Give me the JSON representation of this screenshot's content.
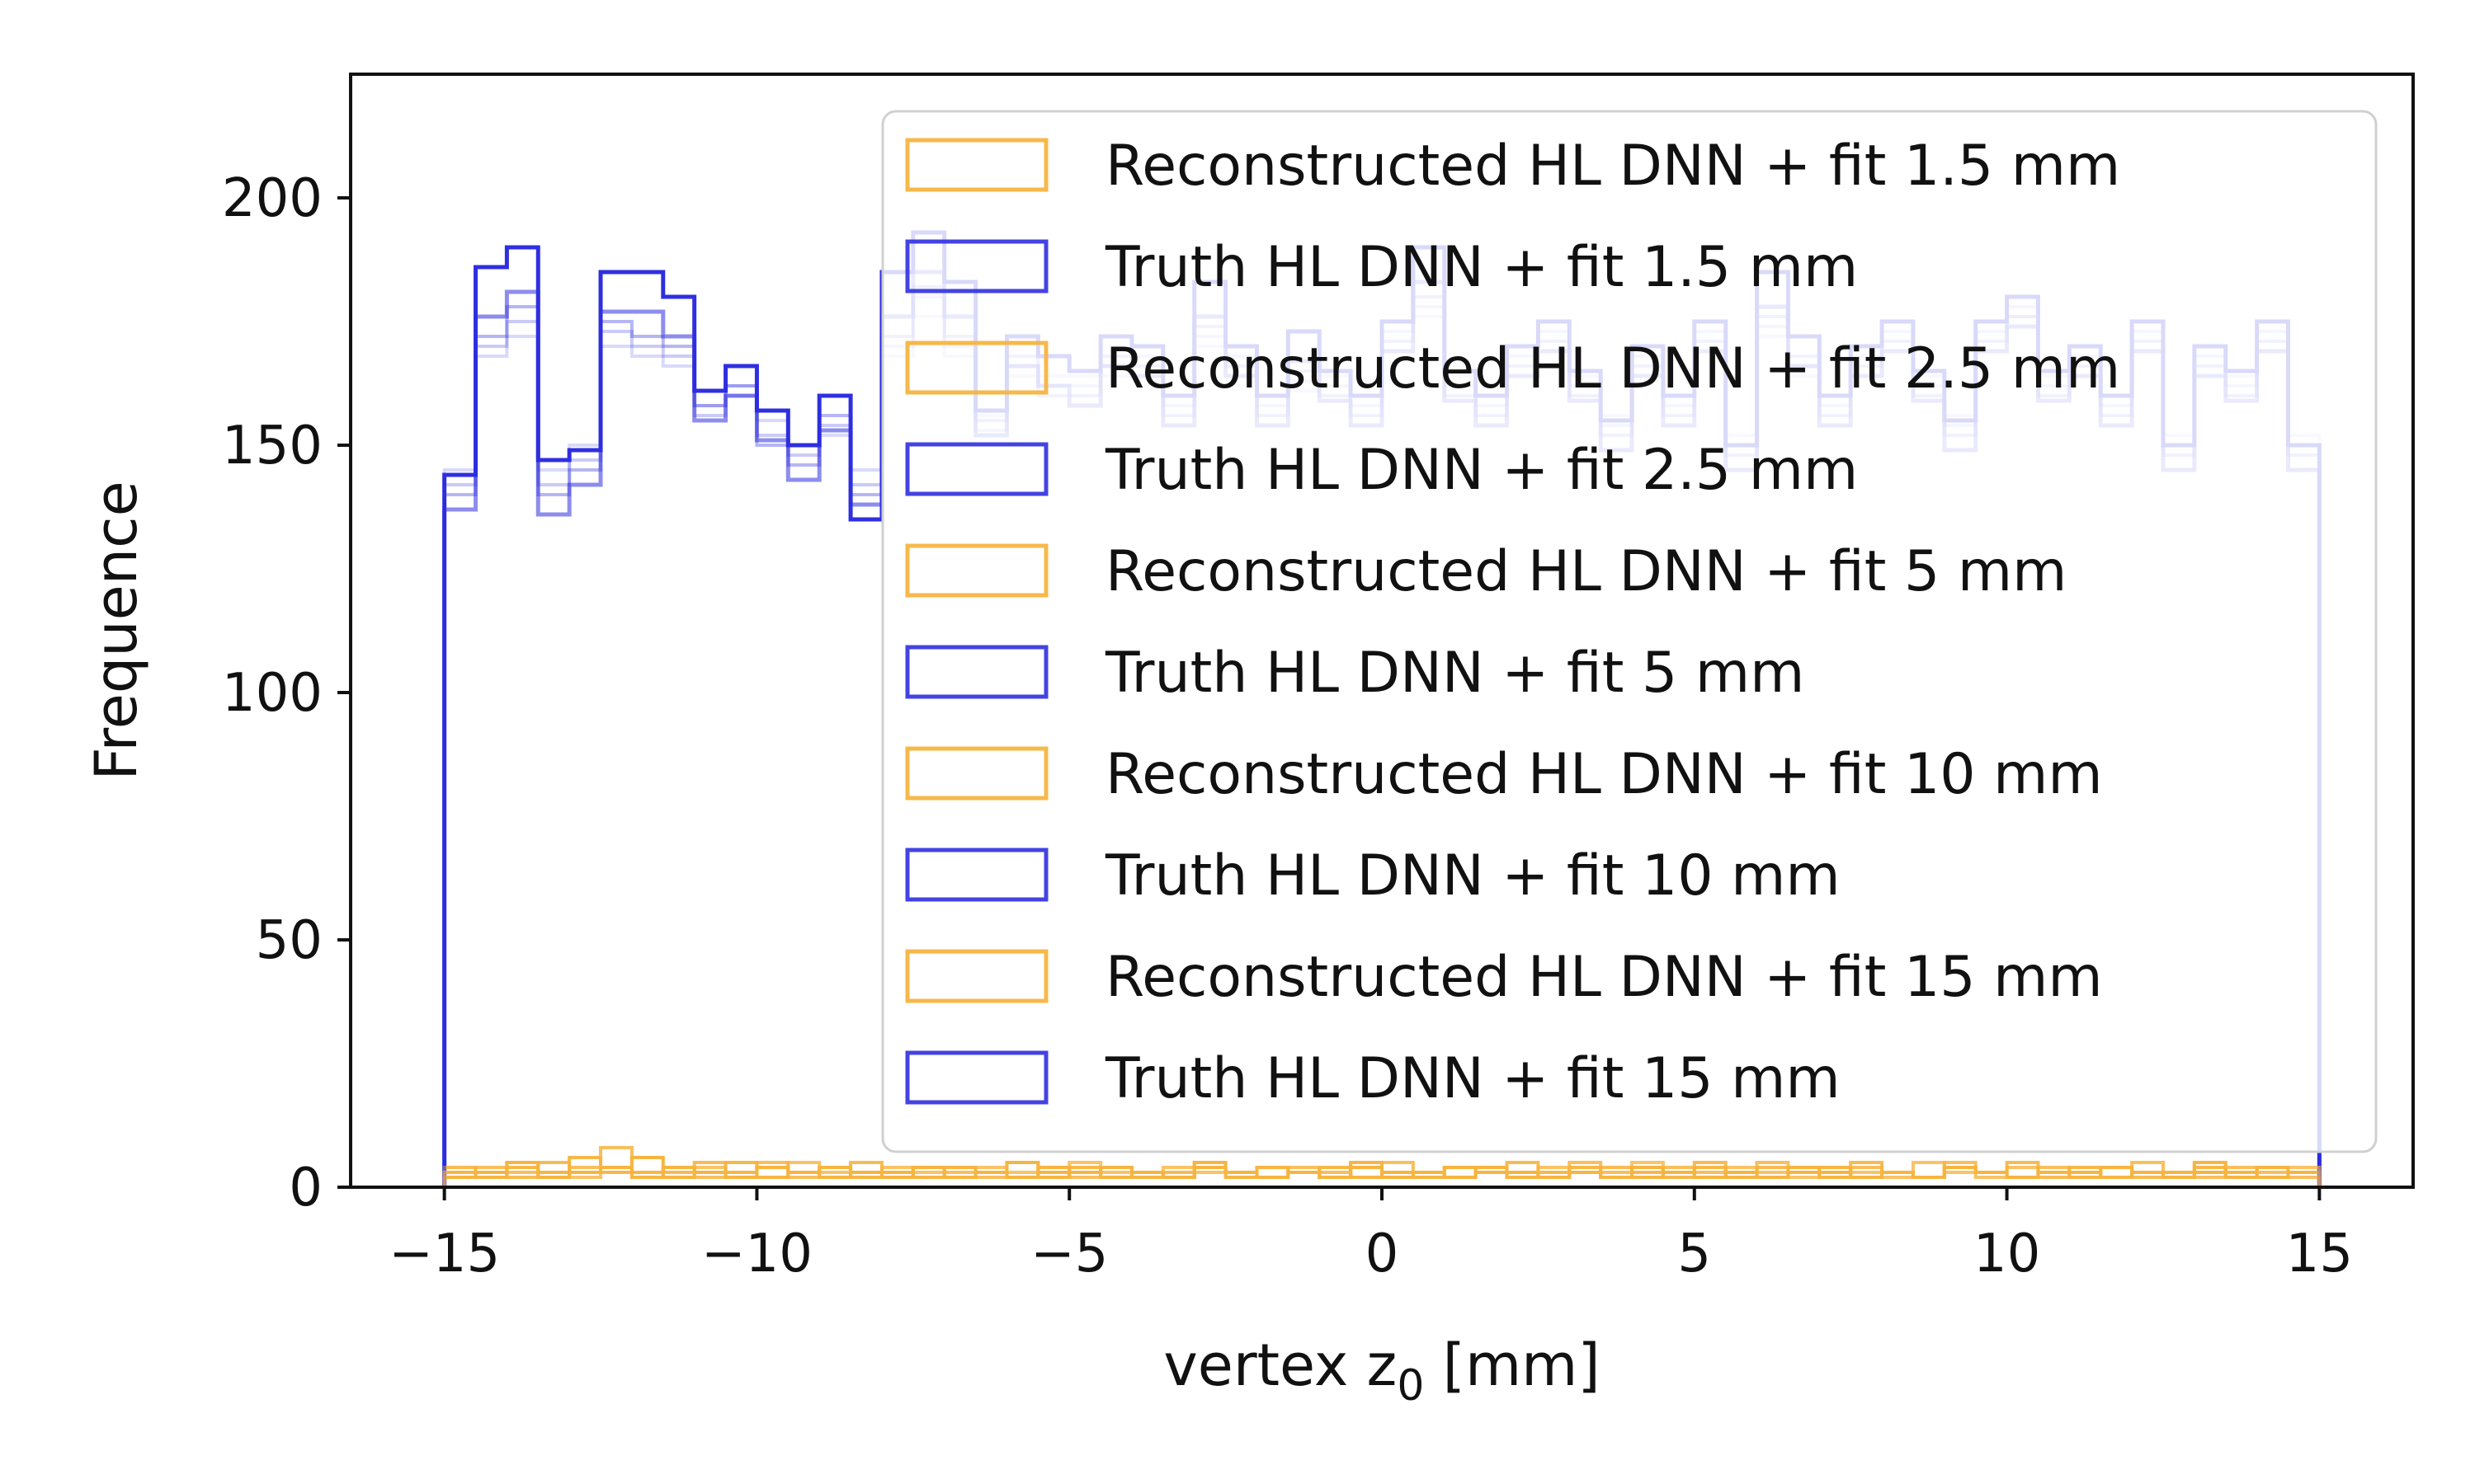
{
  "chart_data": {
    "type": "step",
    "title": "",
    "xlabel": "vertex z",
    "xlabel_subscript": "0",
    "xlabel_unit": " [mm]",
    "ylabel": "Frequence",
    "xlim": [
      -16.5,
      16.5
    ],
    "ylim": [
      0,
      225
    ],
    "xticks": [
      -15,
      -10,
      -5,
      0,
      5,
      10,
      15
    ],
    "xtick_labels": [
      "−15",
      "−10",
      "−5",
      "0",
      "5",
      "10",
      "15"
    ],
    "yticks": [
      0,
      50,
      100,
      150,
      200
    ],
    "ytick_labels": [
      "0",
      "50",
      "100",
      "150",
      "200"
    ],
    "grid": false,
    "legend_placement": "upper-right",
    "bin_edges_range": [
      -15,
      15
    ],
    "bin_width": 0.5,
    "series": [
      {
        "name": "Reconstructed HL DNN + fit 1.5 mm",
        "color": "#f7b440",
        "values": [
          2,
          3,
          5,
          2,
          3,
          4,
          6,
          2,
          3,
          2,
          4,
          3,
          2,
          3,
          2,
          4,
          2,
          3,
          2,
          4,
          3,
          2,
          3,
          2,
          4,
          3,
          2,
          3,
          2,
          4,
          2,
          3,
          2,
          4,
          3,
          2,
          3,
          2,
          4,
          3,
          2,
          3,
          2,
          4,
          3,
          2,
          3,
          2,
          4,
          3,
          2,
          3,
          2,
          4,
          3,
          2,
          3,
          2,
          4,
          3
        ]
      },
      {
        "name": "Truth HL DNN + fit 1.5 mm",
        "color": "#2f2fe0",
        "values": [
          144,
          186,
          190,
          147,
          149,
          185,
          185,
          180,
          161,
          166,
          157,
          150,
          160,
          135,
          185,
          193,
          183,
          157,
          172,
          168,
          165,
          172,
          170,
          160,
          183,
          170,
          160,
          173,
          165,
          160,
          175,
          190,
          165,
          160,
          170,
          175,
          165,
          155,
          170,
          160,
          175,
          150,
          185,
          172,
          160,
          170,
          175,
          165,
          155,
          175,
          180,
          165,
          170,
          160,
          175,
          150,
          170,
          165,
          175,
          150
        ]
      },
      {
        "name": "Reconstructed HL DNN + fit 2.5 mm",
        "color": "#f7b440",
        "values": [
          3,
          2,
          4,
          3,
          6,
          3,
          2,
          4,
          3,
          5,
          2,
          3,
          4,
          2,
          3,
          2,
          4,
          3,
          2,
          3,
          4,
          2,
          3,
          2,
          4,
          3,
          2,
          3,
          4,
          2,
          3,
          2,
          4,
          3,
          2,
          3,
          4,
          2,
          3,
          2,
          4,
          3,
          2,
          3,
          4,
          2,
          3,
          2,
          4,
          3,
          2,
          3,
          4,
          2,
          3,
          2,
          4,
          3,
          2,
          3
        ]
      },
      {
        "name": "Truth HL DNN + fit 2.5 mm",
        "color": "#2f2fe0",
        "values": [
          137,
          176,
          181,
          136,
          142,
          177,
          177,
          172,
          155,
          160,
          151,
          143,
          153,
          138,
          176,
          185,
          176,
          152,
          166,
          162,
          158,
          166,
          164,
          154,
          176,
          164,
          154,
          167,
          159,
          154,
          169,
          183,
          159,
          154,
          164,
          169,
          159,
          149,
          164,
          154,
          169,
          145,
          178,
          166,
          154,
          164,
          169,
          159,
          149,
          169,
          174,
          159,
          164,
          154,
          169,
          145,
          164,
          159,
          169,
          145
        ]
      },
      {
        "name": "Reconstructed HL DNN + fit 5 mm",
        "color": "#f7b440",
        "values": [
          4,
          3,
          2,
          5,
          3,
          4,
          2,
          3,
          5,
          2,
          4,
          3,
          2,
          5,
          3,
          2,
          4,
          3,
          5,
          2,
          3,
          4,
          2,
          3,
          5,
          2,
          4,
          3,
          2,
          5,
          3,
          2,
          4,
          3,
          5,
          2,
          3,
          4,
          2,
          3,
          5,
          2,
          4,
          3,
          2,
          5,
          3,
          2,
          4,
          3,
          5,
          2,
          3,
          4,
          2,
          3,
          5,
          2,
          4,
          3
        ]
      },
      {
        "name": "Truth HL DNN + fit 5 mm",
        "color": "#2f2fe0",
        "values": [
          140,
          172,
          178,
          140,
          145,
          175,
          172,
          170,
          158,
          162,
          150,
          146,
          156,
          140,
          172,
          182,
          172,
          155,
          168,
          160,
          160,
          168,
          166,
          156,
          174,
          166,
          156,
          165,
          160,
          156,
          171,
          180,
          160,
          156,
          166,
          171,
          160,
          152,
          166,
          156,
          171,
          148,
          176,
          168,
          156,
          166,
          171,
          160,
          152,
          171,
          176,
          160,
          166,
          156,
          171,
          148,
          166,
          160,
          171,
          148
        ]
      },
      {
        "name": "Reconstructed HL DNN + fit 10 mm",
        "color": "#f7b440",
        "values": [
          2,
          4,
          3,
          2,
          4,
          8,
          3,
          4,
          2,
          3,
          5,
          2,
          4,
          3,
          2,
          4,
          3,
          2,
          5,
          3,
          2,
          4,
          3,
          2,
          5,
          3,
          2,
          4,
          3,
          2,
          5,
          3,
          2,
          4,
          3,
          2,
          5,
          3,
          2,
          4,
          3,
          2,
          5,
          3,
          2,
          4,
          3,
          2,
          5,
          3,
          2,
          4,
          3,
          2,
          5,
          3,
          2,
          4,
          3,
          2
        ]
      },
      {
        "name": "Truth HL DNN + fit 10 mm",
        "color": "#2f2fe0",
        "values": [
          142,
          170,
          175,
          142,
          147,
          173,
          170,
          168,
          156,
          160,
          152,
          148,
          154,
          142,
          170,
          180,
          170,
          153,
          166,
          162,
          162,
          166,
          168,
          158,
          172,
          168,
          158,
          163,
          162,
          158,
          173,
          178,
          162,
          158,
          168,
          173,
          162,
          154,
          168,
          158,
          173,
          150,
          174,
          166,
          158,
          168,
          173,
          162,
          154,
          173,
          178,
          162,
          168,
          158,
          173,
          150,
          168,
          162,
          173,
          150
        ]
      },
      {
        "name": "Reconstructed HL DNN + fit 15 mm",
        "color": "#f7b440",
        "values": [
          3,
          2,
          5,
          3,
          2,
          4,
          3,
          2,
          4,
          3,
          2,
          5,
          3,
          2,
          4,
          3,
          2,
          4,
          3,
          2,
          5,
          3,
          2,
          4,
          3,
          2,
          4,
          3,
          2,
          5,
          3,
          2,
          4,
          3,
          2,
          4,
          3,
          2,
          5,
          3,
          2,
          4,
          3,
          2,
          4,
          3,
          2,
          5,
          3,
          2,
          4,
          3,
          2,
          4,
          3,
          2,
          5,
          3,
          2,
          4
        ]
      },
      {
        "name": "Truth HL DNN + fit 15 mm",
        "color": "#2f2fe0",
        "values": [
          145,
          168,
          172,
          145,
          150,
          170,
          168,
          166,
          158,
          162,
          155,
          150,
          152,
          145,
          168,
          176,
          168,
          156,
          164,
          164,
          164,
          164,
          170,
          160,
          170,
          170,
          160,
          161,
          164,
          160,
          175,
          176,
          164,
          160,
          170,
          175,
          164,
          156,
          170,
          160,
          175,
          152,
          172,
          164,
          160,
          170,
          175,
          164,
          156,
          175,
          176,
          164,
          170,
          160,
          175,
          152,
          170,
          164,
          175,
          152
        ]
      }
    ]
  }
}
